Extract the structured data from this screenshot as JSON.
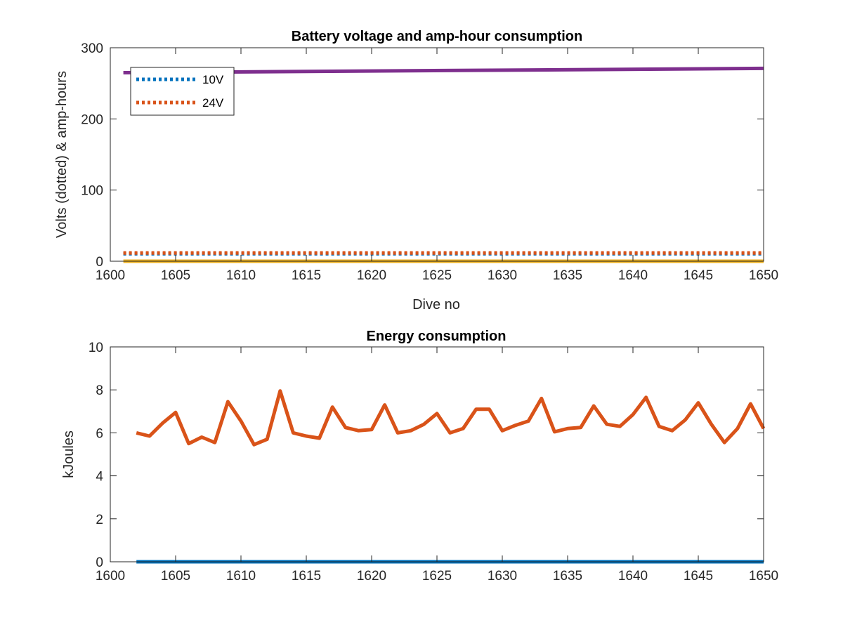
{
  "colors": {
    "blue": "#0072BD",
    "orange": "#D95319",
    "yellow": "#EDB120",
    "purple": "#7E2F8E",
    "axis": "#262626"
  },
  "chart_data": [
    {
      "type": "line",
      "title": "Battery voltage and amp-hour consumption",
      "xlabel": "Dive no",
      "ylabel": "Volts (dotted) & amp-hours",
      "xlim": [
        1600,
        1650
      ],
      "ylim": [
        0,
        300
      ],
      "xticks": [
        1600,
        1605,
        1610,
        1615,
        1620,
        1625,
        1630,
        1635,
        1640,
        1645,
        1650
      ],
      "yticks": [
        0,
        100,
        200,
        300
      ],
      "legend_position": "top-left",
      "series": [
        {
          "name": "10V",
          "style": "dotted",
          "color": "#0072BD",
          "x": [
            1601,
            1650
          ],
          "y": [
            10.5,
            10.5
          ]
        },
        {
          "name": "24V",
          "style": "dotted",
          "color": "#D95319",
          "x": [
            1601,
            1650
          ],
          "y": [
            11.5,
            11.5
          ]
        },
        {
          "style": "solid",
          "color": "#EDB120",
          "x": [
            1601,
            1650
          ],
          "y": [
            0,
            0
          ]
        },
        {
          "style": "solid",
          "color": "#7E2F8E",
          "x": [
            1601,
            1650
          ],
          "y": [
            265,
            271
          ]
        }
      ]
    },
    {
      "type": "line",
      "title": "Energy consumption",
      "xlabel": "",
      "ylabel": "kJoules",
      "xlim": [
        1600,
        1650
      ],
      "ylim": [
        0,
        10
      ],
      "xticks": [
        1600,
        1605,
        1610,
        1615,
        1620,
        1625,
        1630,
        1635,
        1640,
        1645,
        1650
      ],
      "yticks": [
        0,
        2,
        4,
        6,
        8,
        10
      ],
      "series": [
        {
          "style": "solid",
          "color": "#0072BD",
          "x": [
            1602,
            1650
          ],
          "y": [
            0,
            0
          ]
        },
        {
          "style": "solid",
          "color": "#D95319",
          "x": [
            1602,
            1603,
            1604,
            1605,
            1606,
            1607,
            1608,
            1609,
            1610,
            1611,
            1612,
            1613,
            1614,
            1615,
            1616,
            1617,
            1618,
            1619,
            1620,
            1621,
            1622,
            1623,
            1624,
            1625,
            1626,
            1627,
            1628,
            1629,
            1630,
            1631,
            1632,
            1633,
            1634,
            1635,
            1636,
            1637,
            1638,
            1639,
            1640,
            1641,
            1642,
            1643,
            1644,
            1645,
            1646,
            1647,
            1648,
            1649,
            1650
          ],
          "y": [
            6.0,
            5.85,
            6.45,
            6.95,
            5.5,
            5.8,
            5.55,
            7.45,
            6.55,
            5.45,
            5.7,
            7.95,
            6.0,
            5.85,
            5.75,
            7.2,
            6.25,
            6.1,
            6.15,
            7.3,
            6.0,
            6.1,
            6.4,
            6.9,
            6.0,
            6.2,
            7.1,
            7.1,
            6.1,
            6.35,
            6.55,
            7.6,
            6.05,
            6.2,
            6.25,
            7.25,
            6.4,
            6.3,
            6.85,
            7.65,
            6.3,
            6.1,
            6.6,
            7.4,
            6.4,
            5.55,
            6.2,
            7.35,
            6.2
          ]
        }
      ]
    }
  ]
}
